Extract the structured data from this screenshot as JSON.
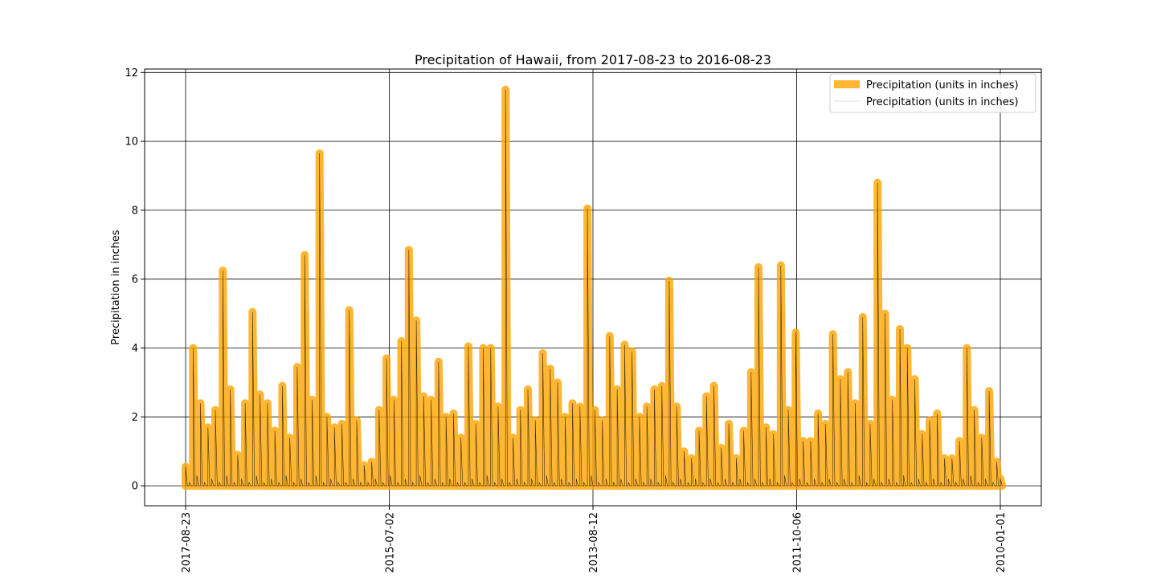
{
  "chart_data": {
    "type": "line",
    "title": "Precipitation of Hawaii, from 2017-08-23 to 2016-08-23",
    "xlabel": "",
    "ylabel": "Precipitation in inches",
    "x_tick_labels": [
      "2017-08-23",
      "2015-07-02",
      "2013-08-12",
      "2011-10-06",
      "2010-01-01"
    ],
    "y_ticks": [
      0,
      2,
      4,
      6,
      8,
      10,
      12
    ],
    "ylim": [
      -0.58,
      12.1
    ],
    "grid": true,
    "legend_position": "top-right",
    "x_order": "descending dates left to right",
    "series": [
      {
        "name": "Precipitation (units in inches)",
        "style": "thick",
        "color": "#FFA500",
        "values": [
          0.55,
          0.1,
          4.0,
          0.3,
          2.4,
          0.1,
          1.7,
          0.2,
          2.2,
          0.1,
          6.25,
          0.3,
          2.8,
          0.1,
          0.9,
          0.2,
          2.4,
          0.1,
          5.05,
          0.3,
          2.65,
          0.1,
          2.4,
          0.2,
          1.6,
          0.1,
          2.9,
          0.3,
          1.4,
          0.1,
          3.45,
          0.2,
          6.7,
          0.1,
          2.5,
          0.3,
          9.65,
          0.1,
          2.0,
          0.2,
          1.7,
          0.1,
          1.8,
          0.1,
          5.1,
          0.2,
          1.9,
          0.1,
          0.6,
          0.1,
          0.7,
          0.2,
          2.2,
          0.1,
          3.7,
          0.3,
          2.5,
          0.1,
          4.2,
          0.2,
          6.85,
          0.1,
          4.8,
          0.3,
          2.6,
          0.1,
          2.5,
          0.2,
          3.6,
          0.1,
          2.0,
          0.2,
          2.1,
          0.1,
          1.4,
          0.1,
          4.05,
          0.2,
          1.8,
          0.1,
          4.0,
          0.3,
          4.0,
          0.1,
          2.3,
          0.2,
          11.5,
          0.1,
          1.4,
          0.2,
          2.2,
          0.1,
          2.8,
          0.2,
          1.9,
          0.1,
          3.85,
          0.3,
          3.4,
          0.1,
          3.0,
          0.2,
          2.0,
          0.1,
          2.4,
          0.2,
          2.3,
          0.1,
          8.05,
          0.3,
          2.2,
          0.1,
          1.9,
          0.2,
          4.35,
          0.1,
          2.8,
          0.2,
          4.1,
          0.1,
          3.9,
          0.2,
          2.0,
          0.1,
          2.3,
          0.2,
          2.8,
          0.1,
          2.9,
          0.3,
          5.95,
          0.1,
          2.3,
          0.2,
          1.0,
          0.1,
          0.8,
          0.2,
          1.6,
          0.1,
          2.6,
          0.2,
          2.9,
          0.1,
          1.1,
          0.2,
          1.8,
          0.1,
          0.8,
          0.2,
          1.6,
          0.1,
          3.3,
          0.2,
          6.35,
          0.1,
          1.7,
          0.2,
          1.5,
          0.1,
          6.4,
          0.3,
          2.2,
          0.1,
          4.45,
          0.2,
          1.3,
          0.1,
          1.3,
          0.2,
          2.1,
          0.1,
          1.8,
          0.2,
          4.4,
          0.1,
          3.1,
          0.2,
          3.3,
          0.1,
          2.4,
          0.3,
          4.9,
          0.1,
          1.8,
          0.2,
          8.8,
          0.1,
          5.0,
          0.2,
          2.5,
          0.1,
          4.55,
          0.3,
          4.0,
          0.1,
          3.1,
          0.2,
          1.5,
          0.1,
          1.9,
          0.2,
          2.1,
          0.1,
          0.8,
          0.2,
          0.8,
          0.1,
          1.3,
          0.2,
          4.0,
          0.3,
          2.2,
          0.1,
          1.4,
          0.2,
          2.75,
          0.1,
          0.7,
          0.2
        ]
      },
      {
        "name": "Precipitation (units in inches)",
        "style": "thin",
        "color": "#000000"
      }
    ]
  }
}
